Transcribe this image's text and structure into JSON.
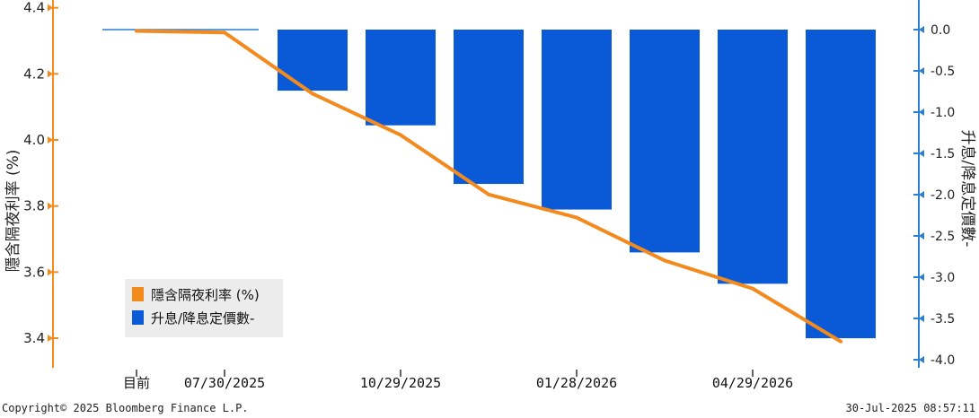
{
  "chart_data": {
    "type": "bar+line",
    "categories": [
      "目前",
      "07/30/2025",
      "",
      "10/29/2025",
      "",
      "01/28/2026",
      "",
      "04/29/2026",
      ""
    ],
    "x_tick_labels": [
      "目前",
      "07/30/2025",
      "10/29/2025",
      "01/28/2026",
      "04/29/2026"
    ],
    "series": [
      {
        "name": "隱含隔夜利率 (%)",
        "type": "line",
        "axis": "left",
        "color": "#f28a1e",
        "values": [
          4.33,
          4.325,
          4.14,
          4.015,
          3.835,
          3.765,
          3.635,
          3.55,
          3.39
        ]
      },
      {
        "name": "升息/降息定價數-",
        "type": "bar",
        "axis": "right",
        "color": "#0a5ad8",
        "values": [
          0.0,
          0.0,
          -0.74,
          -1.16,
          -1.87,
          -2.18,
          -2.7,
          -3.08,
          -3.74
        ]
      }
    ],
    "y_left": {
      "label": "隱含隔夜利率 (%)",
      "ylim": [
        3.35,
        4.45
      ],
      "ticks": [
        "3.4",
        "3.6",
        "3.8",
        "4.0",
        "4.2",
        "4.4"
      ]
    },
    "y_right": {
      "label": "升息/降息定價數-",
      "ylim": [
        -4.15,
        0.4
      ],
      "ticks": [
        "0.0",
        "-0.5",
        "-1.0",
        "-1.5",
        "-2.0",
        "-2.5",
        "-3.0",
        "-3.5",
        "-4.0"
      ]
    },
    "legend_position": "bottom-left",
    "grid": false
  },
  "footer": {
    "copyright": "Copyright© 2025 Bloomberg Finance L.P.",
    "timestamp": "30-Jul-2025 08:57:11"
  }
}
